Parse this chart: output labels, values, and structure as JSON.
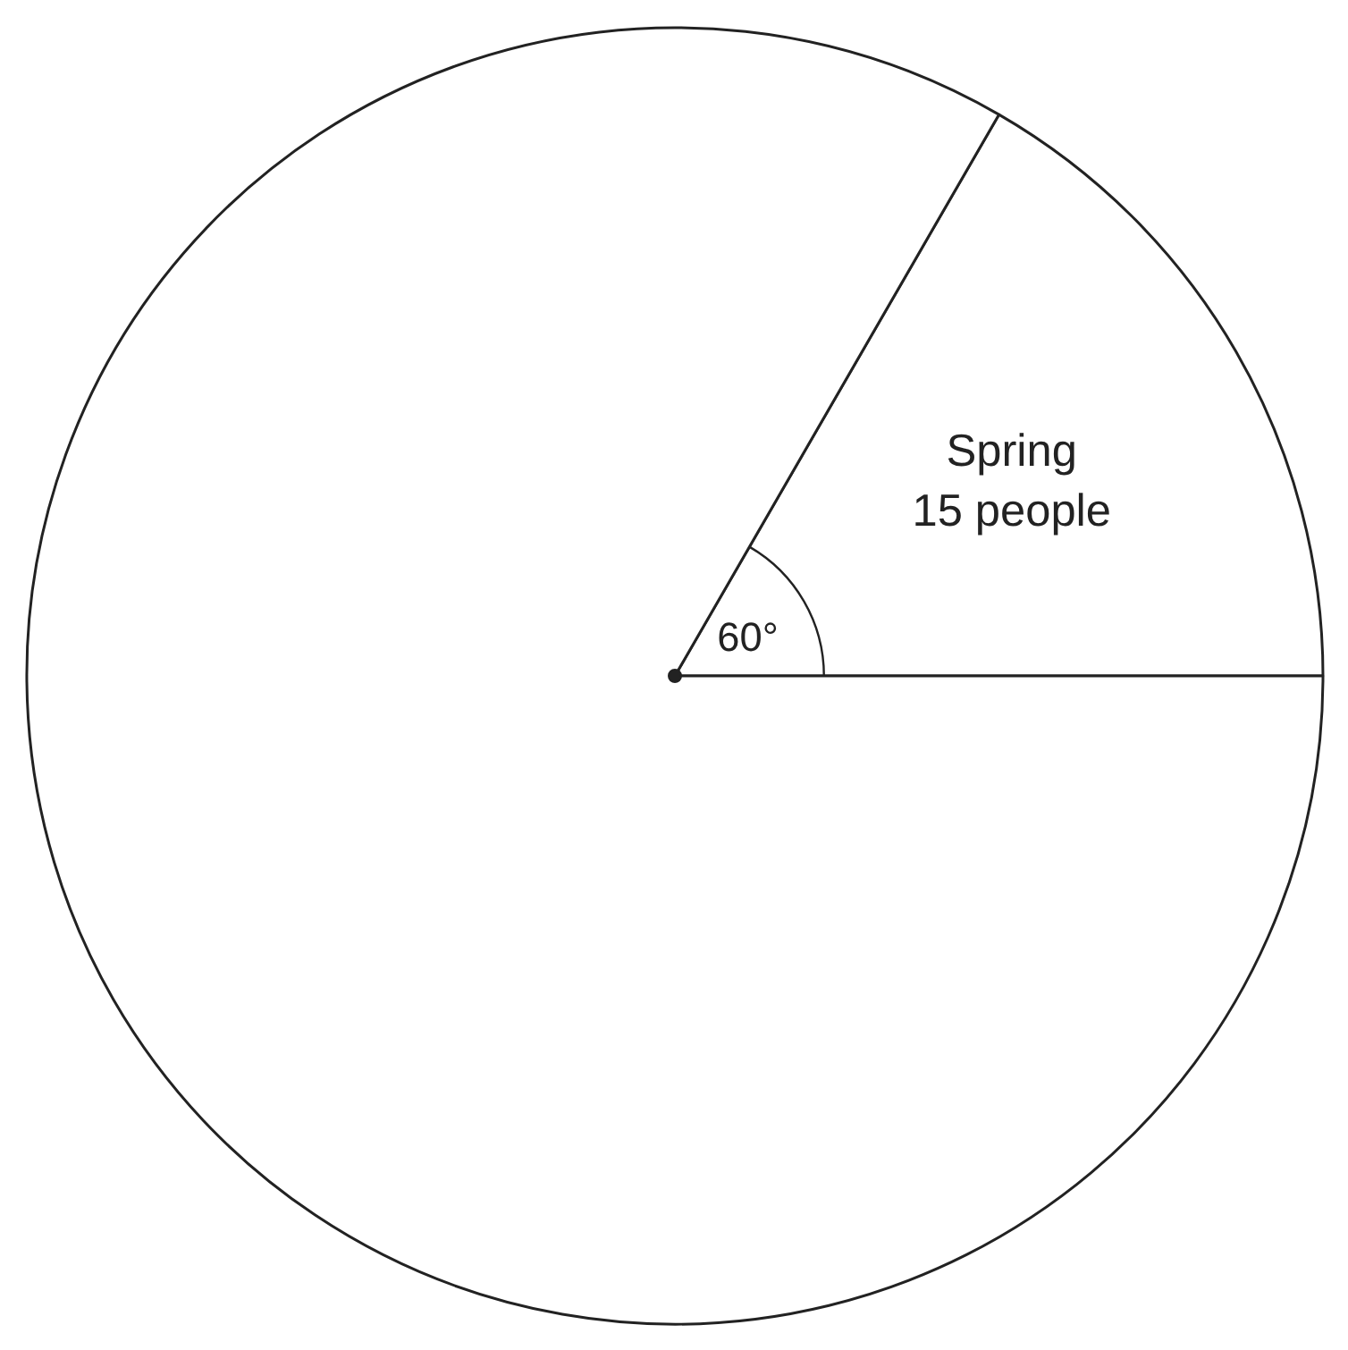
{
  "chart_data": {
    "type": "pie",
    "categories": [
      "Spring",
      null
    ],
    "values": [
      15,
      75
    ],
    "value_labels": [
      "15 people",
      null
    ],
    "colors": [
      "#ffffff",
      "#ffffff"
    ],
    "annotations": [
      "60°"
    ]
  }
}
